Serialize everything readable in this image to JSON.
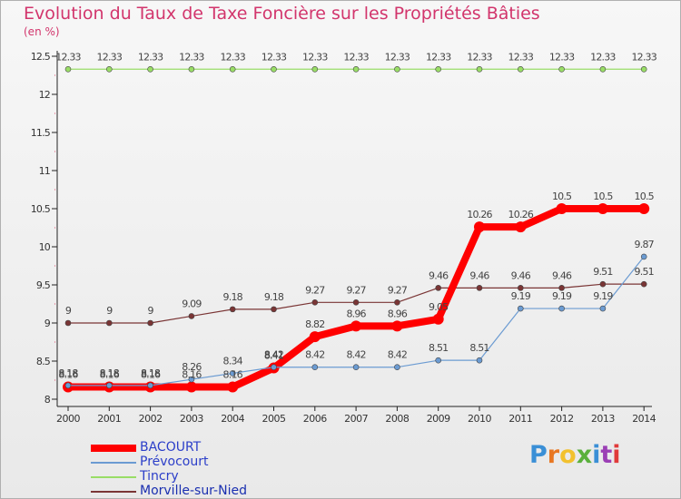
{
  "title": "Evolution du Taux de Taxe Foncière sur les Propriétés Bâties",
  "unit": "(en %)",
  "logo": {
    "text": "Proxiti"
  },
  "colors": {
    "title": "#d2356c"
  },
  "chart_data": {
    "type": "line",
    "title": "Evolution du Taux de Taxe Foncière sur les Propriétés Bâties",
    "ylabel": "(en %)",
    "xlabel": "",
    "ylim": [
      8,
      12.5
    ],
    "yticks": [
      "8",
      "8.5",
      "9",
      "9.5",
      "10",
      "10.5",
      "11",
      "11.5",
      "12",
      "12.5"
    ],
    "categories": [
      "2000",
      "2001",
      "2002",
      "2003",
      "2004",
      "2005",
      "2006",
      "2007",
      "2008",
      "2009",
      "2010",
      "2011",
      "2012",
      "2013",
      "2014"
    ],
    "grid": false,
    "legend": "bottom-left",
    "series": [
      {
        "name": "BACOURT",
        "color": "#ff0000",
        "values": [
          8.16,
          8.16,
          8.16,
          8.16,
          8.16,
          8.41,
          8.82,
          8.96,
          8.96,
          9.05,
          10.26,
          10.26,
          10.5,
          10.5,
          10.5
        ],
        "labels": [
          "8.16",
          "8.16",
          "8.16",
          "8.16",
          "8.16",
          "8.41",
          "8.82",
          "8.96",
          "8.96",
          "9.05",
          "10.26",
          "10.26",
          "10.5",
          "10.5",
          "10.5"
        ]
      },
      {
        "name": "Prévocourt",
        "color": "#6b9bd2",
        "values": [
          8.18,
          8.18,
          8.18,
          8.26,
          8.34,
          8.42,
          8.42,
          8.42,
          8.42,
          8.51,
          8.51,
          9.19,
          9.19,
          9.19,
          9.87
        ],
        "labels": [
          "8.18",
          "8.18",
          "8.18",
          "8.26",
          "8.34",
          "8.42",
          "8.42",
          "8.42",
          "8.42",
          "8.51",
          "8.51",
          "9.19",
          "9.19",
          "9.19",
          "9.87"
        ]
      },
      {
        "name": "Tincry",
        "color": "#99dd66",
        "values": [
          12.33,
          12.33,
          12.33,
          12.33,
          12.33,
          12.33,
          12.33,
          12.33,
          12.33,
          12.33,
          12.33,
          12.33,
          12.33,
          12.33,
          12.33
        ],
        "labels": [
          "12.33",
          "12.33",
          "12.33",
          "12.33",
          "12.33",
          "12.33",
          "12.33",
          "12.33",
          "12.33",
          "12.33",
          "12.33",
          "12.33",
          "12.33",
          "12.33",
          "12.33"
        ]
      },
      {
        "name": "Morville-sur-Nied",
        "color": "#7a3535",
        "values": [
          9,
          9,
          9,
          9.09,
          9.18,
          9.18,
          9.27,
          9.27,
          9.27,
          9.46,
          9.46,
          9.46,
          9.46,
          9.51,
          9.51
        ],
        "labels": [
          "9",
          "9",
          "9",
          "9.09",
          "9.18",
          "9.18",
          "9.27",
          "9.27",
          "9.27",
          "9.46",
          "9.46",
          "9.46",
          "9.46",
          "9.51",
          "9.51"
        ]
      }
    ]
  }
}
